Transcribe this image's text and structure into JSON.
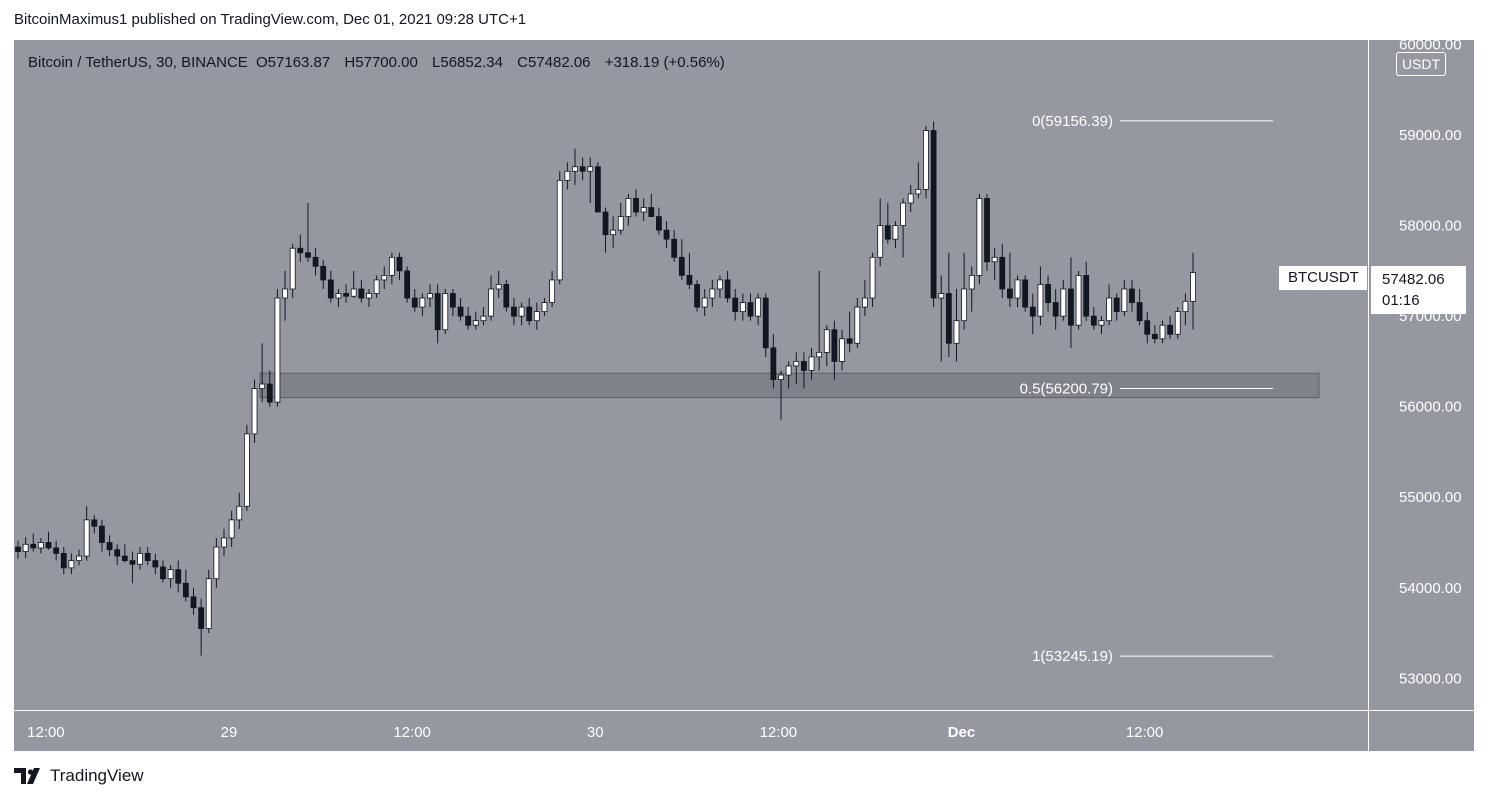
{
  "header": {
    "published_text": "BitcoinMaximus1 published on TradingView.com, Dec 01, 2021 09:28 UTC+1"
  },
  "legend": {
    "symbol": "Bitcoin / TetherUS, 30, BINANCE",
    "o_label": "O",
    "o_value": "57163.87",
    "h_label": "H",
    "h_value": "57700.00",
    "l_label": "L",
    "l_value": "56852.34",
    "c_label": "C",
    "c_value": "57482.06",
    "change": "+318.19 (+0.56%)"
  },
  "currency_badge": "USDT",
  "price_tag": {
    "symbol": "BTCUSDT",
    "price": "57482.06",
    "countdown": "01:16"
  },
  "footer": {
    "brand": "TradingView"
  },
  "colors": {
    "background": "#9598a1",
    "up": "#ffffff",
    "down": "#131722",
    "zone": "#7f828b"
  },
  "chart_data": {
    "type": "candlestick",
    "interval": "30",
    "ylim": [
      52650,
      60050
    ],
    "y_ticks": [
      "53000.00",
      "54000.00",
      "55000.00",
      "56000.00",
      "57000.00",
      "58000.00",
      "59000.00",
      "60000.00"
    ],
    "y_tick_values": [
      53000,
      54000,
      55000,
      56000,
      57000,
      58000,
      59000,
      60000
    ],
    "x_ticks": [
      {
        "label": "12:00",
        "index": 3
      },
      {
        "label": "29",
        "index": 27
      },
      {
        "label": "12:00",
        "index": 51
      },
      {
        "label": "30",
        "index": 75
      },
      {
        "label": "12:00",
        "index": 99
      },
      {
        "label": "Dec",
        "index": 123
      },
      {
        "label": "12:00",
        "index": 147
      }
    ],
    "candles": [
      [
        54450,
        54520,
        54320,
        54400
      ],
      [
        54400,
        54560,
        54330,
        54480
      ],
      [
        54480,
        54600,
        54400,
        54440
      ],
      [
        54440,
        54550,
        54380,
        54500
      ],
      [
        54500,
        54620,
        54420,
        54440
      ],
      [
        54440,
        54520,
        54300,
        54380
      ],
      [
        54380,
        54450,
        54150,
        54220
      ],
      [
        54220,
        54380,
        54150,
        54300
      ],
      [
        54300,
        54420,
        54250,
        54350
      ],
      [
        54350,
        54900,
        54300,
        54750
      ],
      [
        54750,
        54800,
        54600,
        54680
      ],
      [
        54680,
        54750,
        54400,
        54500
      ],
      [
        54500,
        54580,
        54350,
        54420
      ],
      [
        54420,
        54480,
        54250,
        54350
      ],
      [
        54350,
        54480,
        54280,
        54300
      ],
      [
        54300,
        54400,
        54050,
        54260
      ],
      [
        54260,
        54450,
        54200,
        54380
      ],
      [
        54380,
        54450,
        54250,
        54300
      ],
      [
        54300,
        54380,
        54150,
        54230
      ],
      [
        54230,
        54300,
        54060,
        54100
      ],
      [
        54100,
        54250,
        54000,
        54200
      ],
      [
        54200,
        54300,
        53950,
        54050
      ],
      [
        54050,
        54200,
        53850,
        53900
      ],
      [
        53900,
        54000,
        53700,
        53780
      ],
      [
        53780,
        53880,
        53250,
        53550
      ],
      [
        53550,
        54200,
        53500,
        54100
      ],
      [
        54100,
        54550,
        54000,
        54450
      ],
      [
        54450,
        54650,
        54350,
        54550
      ],
      [
        54550,
        54850,
        54450,
        54750
      ],
      [
        54750,
        55050,
        54650,
        54900
      ],
      [
        54900,
        55800,
        54850,
        55700
      ],
      [
        55700,
        56300,
        55600,
        56200
      ],
      [
        56200,
        56700,
        56050,
        56250
      ],
      [
        56250,
        56400,
        56000,
        56050
      ],
      [
        56050,
        57300,
        56000,
        57200
      ],
      [
        57200,
        57500,
        56950,
        57300
      ],
      [
        57300,
        57800,
        57200,
        57750
      ],
      [
        57750,
        57900,
        57600,
        57700
      ],
      [
        57700,
        58250,
        57600,
        57650
      ],
      [
        57650,
        57750,
        57450,
        57550
      ],
      [
        57550,
        57620,
        57300,
        57400
      ],
      [
        57400,
        57500,
        57150,
        57200
      ],
      [
        57200,
        57300,
        57100,
        57250
      ],
      [
        57250,
        57350,
        57150,
        57220
      ],
      [
        57220,
        57500,
        57200,
        57300
      ],
      [
        57300,
        57400,
        57150,
        57200
      ],
      [
        57200,
        57300,
        57100,
        57250
      ],
      [
        57250,
        57450,
        57200,
        57400
      ],
      [
        57400,
        57550,
        57300,
        57450
      ],
      [
        57450,
        57700,
        57350,
        57650
      ],
      [
        57650,
        57700,
        57400,
        57500
      ],
      [
        57500,
        57550,
        57150,
        57200
      ],
      [
        57200,
        57300,
        57050,
        57100
      ],
      [
        57100,
        57250,
        57000,
        57200
      ],
      [
        57200,
        57350,
        57100,
        57250
      ],
      [
        57250,
        57350,
        56700,
        56850
      ],
      [
        56850,
        57300,
        56800,
        57250
      ],
      [
        57250,
        57300,
        57000,
        57100
      ],
      [
        57100,
        57200,
        56950,
        57000
      ],
      [
        57000,
        57100,
        56850,
        56900
      ],
      [
        56900,
        57050,
        56850,
        56950
      ],
      [
        56950,
        57100,
        56900,
        57000
      ],
      [
        57000,
        57450,
        56950,
        57300
      ],
      [
        57300,
        57500,
        57200,
        57350
      ],
      [
        57350,
        57400,
        57050,
        57100
      ],
      [
        57100,
        57200,
        56900,
        57000
      ],
      [
        57000,
        57150,
        56900,
        57100
      ],
      [
        57100,
        57200,
        56900,
        56950
      ],
      [
        56950,
        57150,
        56850,
        57050
      ],
      [
        57050,
        57200,
        57000,
        57150
      ],
      [
        57150,
        57500,
        57100,
        57400
      ],
      [
        57400,
        58600,
        57350,
        58500
      ],
      [
        58500,
        58700,
        58400,
        58600
      ],
      [
        58600,
        58850,
        58450,
        58650
      ],
      [
        58650,
        58750,
        58500,
        58600
      ],
      [
        58600,
        58750,
        58250,
        58650
      ],
      [
        58650,
        58700,
        58200,
        58150
      ],
      [
        58150,
        58200,
        57700,
        57900
      ],
      [
        57900,
        58100,
        57750,
        57950
      ],
      [
        57950,
        58250,
        57900,
        58100
      ],
      [
        58100,
        58350,
        58000,
        58300
      ],
      [
        58300,
        58400,
        58100,
        58150
      ],
      [
        58150,
        58300,
        58050,
        58200
      ],
      [
        58200,
        58350,
        58100,
        58100
      ],
      [
        58100,
        58200,
        57900,
        57950
      ],
      [
        57950,
        58050,
        57750,
        57850
      ],
      [
        57850,
        57950,
        57600,
        57650
      ],
      [
        57650,
        57850,
        57400,
        57450
      ],
      [
        57450,
        57700,
        57300,
        57350
      ],
      [
        57350,
        57400,
        57050,
        57100
      ],
      [
        57100,
        57300,
        57000,
        57200
      ],
      [
        57200,
        57400,
        57100,
        57300
      ],
      [
        57300,
        57450,
        57200,
        57400
      ],
      [
        57400,
        57500,
        57150,
        57200
      ],
      [
        57200,
        57300,
        56950,
        57050
      ],
      [
        57050,
        57250,
        56950,
        57150
      ],
      [
        57150,
        57250,
        56950,
        57000
      ],
      [
        57000,
        57250,
        56900,
        57200
      ],
      [
        57200,
        57250,
        56550,
        56650
      ],
      [
        56650,
        56800,
        56200,
        56300
      ],
      [
        56300,
        56400,
        55850,
        56350
      ],
      [
        56350,
        56500,
        56200,
        56450
      ],
      [
        56450,
        56600,
        56250,
        56500
      ],
      [
        56500,
        56600,
        56200,
        56400
      ],
      [
        56400,
        56650,
        56300,
        56550
      ],
      [
        56550,
        57500,
        56400,
        56600
      ],
      [
        56600,
        56900,
        56450,
        56850
      ],
      [
        56850,
        56950,
        56300,
        56500
      ],
      [
        56500,
        56850,
        56400,
        56750
      ],
      [
        56750,
        57050,
        56600,
        56700
      ],
      [
        56700,
        57200,
        56650,
        57100
      ],
      [
        57100,
        57400,
        57000,
        57200
      ],
      [
        57200,
        57700,
        57100,
        57650
      ],
      [
        57650,
        58300,
        57550,
        58000
      ],
      [
        58000,
        58250,
        57800,
        57850
      ],
      [
        57850,
        58050,
        57750,
        58000
      ],
      [
        58000,
        58300,
        57650,
        58250
      ],
      [
        58250,
        58450,
        58150,
        58350
      ],
      [
        58350,
        58700,
        58300,
        58400
      ],
      [
        58400,
        59100,
        58300,
        59050
      ],
      [
        59050,
        59150,
        57100,
        57200
      ],
      [
        57200,
        57450,
        56500,
        57250
      ],
      [
        57250,
        57700,
        56550,
        56700
      ],
      [
        56700,
        57300,
        56500,
        56950
      ],
      [
        56950,
        57700,
        56850,
        57300
      ],
      [
        57300,
        57550,
        57050,
        57450
      ],
      [
        57450,
        58350,
        57350,
        58300
      ],
      [
        58300,
        58350,
        57500,
        57600
      ],
      [
        57600,
        57750,
        57400,
        57650
      ],
      [
        57650,
        57800,
        57200,
        57300
      ],
      [
        57300,
        57700,
        57100,
        57200
      ],
      [
        57200,
        57450,
        57100,
        57400
      ],
      [
        57400,
        57450,
        57050,
        57100
      ],
      [
        57100,
        57250,
        56800,
        57000
      ],
      [
        57000,
        57550,
        56900,
        57350
      ],
      [
        57350,
        57450,
        57050,
        57150
      ],
      [
        57150,
        57300,
        56850,
        57000
      ],
      [
        57000,
        57400,
        56950,
        57300
      ],
      [
        57300,
        57650,
        56650,
        56900
      ],
      [
        56900,
        57500,
        56850,
        57450
      ],
      [
        57450,
        57600,
        56950,
        57000
      ],
      [
        57000,
        57100,
        56850,
        56900
      ],
      [
        56900,
        57000,
        56800,
        56950
      ],
      [
        56950,
        57350,
        56900,
        57200
      ],
      [
        57200,
        57250,
        56950,
        57050
      ],
      [
        57050,
        57400,
        57000,
        57300
      ],
      [
        57300,
        57400,
        57050,
        57150
      ],
      [
        57150,
        57300,
        56900,
        56950
      ],
      [
        56950,
        57050,
        56700,
        56800
      ],
      [
        56800,
        56900,
        56700,
        56750
      ],
      [
        56750,
        56950,
        56700,
        56900
      ],
      [
        56900,
        57000,
        56750,
        56800
      ],
      [
        56800,
        57100,
        56750,
        57050
      ],
      [
        57050,
        57250,
        56900,
        57163.87
      ],
      [
        57163.87,
        57700,
        56852.34,
        57482.06
      ]
    ],
    "fib_levels": [
      {
        "label": "0(59156.39)",
        "value": 59156.39
      },
      {
        "label": "0.5(56200.79)",
        "value": 56200.79
      },
      {
        "label": "1(53245.19)",
        "value": 53245.19
      }
    ],
    "support_zone": {
      "from": 56100,
      "to": 56370
    }
  }
}
